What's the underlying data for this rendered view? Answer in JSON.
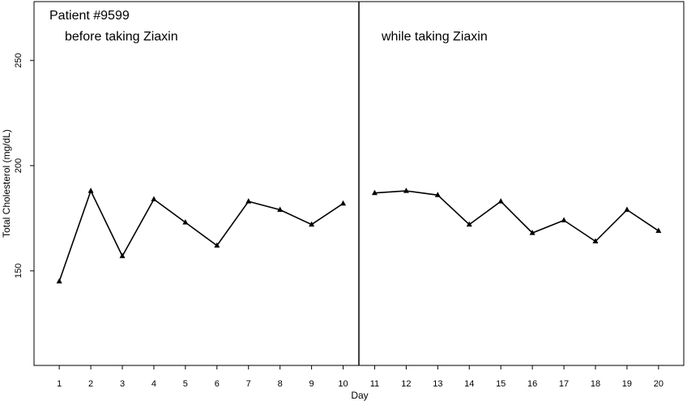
{
  "chart_data": {
    "type": "line",
    "title": "Patient #9599",
    "xlabel": "Day",
    "ylabel": "Total Cholesterol (mg/dL)",
    "ylim": [
      105,
      278
    ],
    "xlim": [
      0.2,
      20.8
    ],
    "yticks": [
      150,
      200,
      250
    ],
    "x": [
      1,
      2,
      3,
      4,
      5,
      6,
      7,
      8,
      9,
      10,
      11,
      12,
      13,
      14,
      15,
      16,
      17,
      18,
      19,
      20
    ],
    "grid": false,
    "marker": "triangle",
    "divider_between_days": [
      10,
      11
    ],
    "series": [
      {
        "label": "before taking Ziaxin",
        "x": [
          1,
          2,
          3,
          4,
          5,
          6,
          7,
          8,
          9,
          10
        ],
        "y": [
          145,
          188,
          157,
          184,
          173,
          162,
          183,
          179,
          172,
          182
        ]
      },
      {
        "label": "while taking Ziaxin",
        "x": [
          11,
          12,
          13,
          14,
          15,
          16,
          17,
          18,
          19,
          20
        ],
        "y": [
          187,
          188,
          186,
          172,
          183,
          168,
          174,
          164,
          179,
          169
        ]
      }
    ]
  }
}
